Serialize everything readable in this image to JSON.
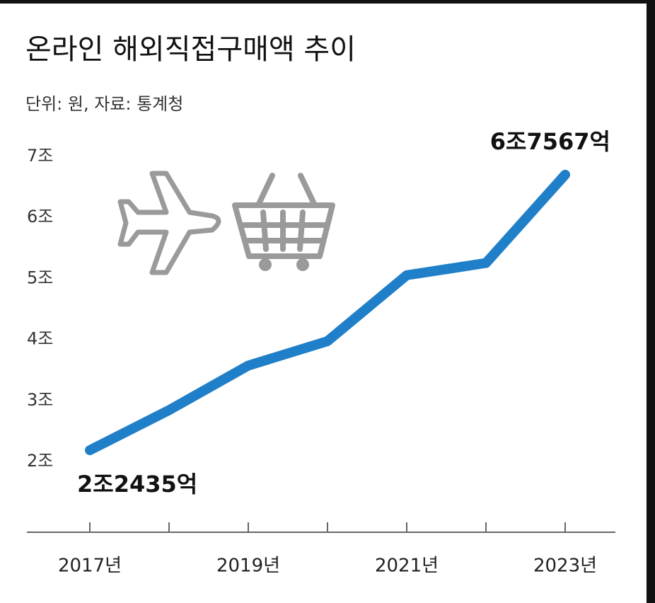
{
  "chart_data": {
    "type": "line",
    "title": "온라인 해외직접구매액 추이",
    "subtitle": "단위: 원, 자료: 통계청",
    "categories": [
      "2017년",
      null,
      "2019년",
      null,
      "2021년",
      null,
      "2023년"
    ],
    "values": [
      2.2435,
      2.9,
      3.63,
      4.03,
      5.11,
      5.31,
      6.7567
    ],
    "value_labels": [
      "2조2435억",
      null,
      null,
      null,
      null,
      null,
      "6조7567억"
    ],
    "color": "#1f7fc8",
    "ylim": [
      0.9,
      7.3
    ],
    "yticks": [
      {
        "value": 2,
        "label": "2조"
      },
      {
        "value": 3,
        "label": "3조"
      },
      {
        "value": 4,
        "label": "4조"
      },
      {
        "value": 5,
        "label": "5조"
      },
      {
        "value": 6,
        "label": "6조"
      },
      {
        "value": 7,
        "label": "7조"
      }
    ],
    "grid": false
  }
}
